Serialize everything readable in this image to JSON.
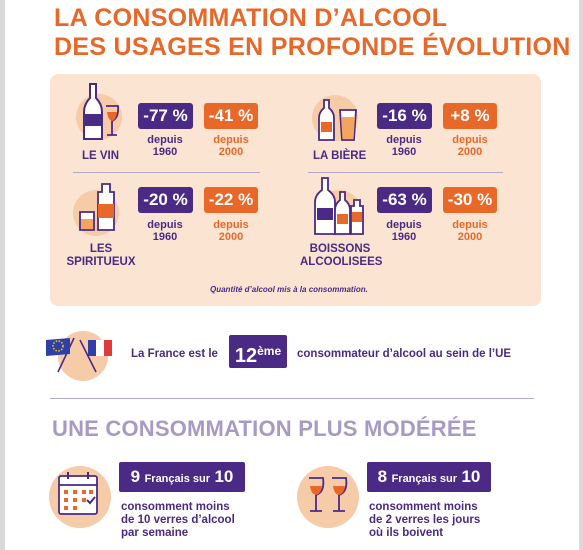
{
  "title": {
    "line1": "LA CONSOMMATION D’ALCOOL",
    "line2": "DES USAGES EN PROFONDE ÉVOLUTION"
  },
  "categories": [
    {
      "name": "LE VIN",
      "icon": "wine-bottle-glass-icon",
      "since_1960": "-77 %",
      "since_2000": "-41 %"
    },
    {
      "name": "LA BIÈRE",
      "icon": "beer-bottle-glass-icon",
      "since_1960": "-16 %",
      "since_2000": "+8 %"
    },
    {
      "name_line1": "LES",
      "name_line2": "SPIRITUEUX",
      "icon": "spirits-bottle-glass-icon",
      "since_1960": "-20 %",
      "since_2000": "-22 %"
    },
    {
      "name_line1": "BOISSONS",
      "name_line2": "ALCOOLISEES",
      "icon": "mixed-bottles-icon",
      "since_1960": "-63 %",
      "since_2000": "-30 %"
    }
  ],
  "labels": {
    "depuis": "depuis",
    "year_1960": "1960",
    "year_2000": "2000"
  },
  "footnote": "Quantité d’alcool mis à la consommation.",
  "ranking": {
    "icon": "eu-france-flags-icon",
    "before": "La France est le",
    "rank": "12",
    "rank_suffix": "ème",
    "after": "consommateur d’alcool au sein de l’UE"
  },
  "subtitle": "UNE CONSOMMATION PLUS MODÉRÉE",
  "stats": [
    {
      "icon": "calendar-icon",
      "number": "9",
      "mid": "Français sur",
      "total": "10",
      "line1": "consomment moins",
      "line2": "de 10 verres d’alcool",
      "line3": "par semaine"
    },
    {
      "icon": "wine-glasses-icon",
      "number": "8",
      "mid": "Français sur",
      "total": "10",
      "line1": "consomment moins",
      "line2": "de 2 verres les jours",
      "line3": "où ils boivent"
    }
  ],
  "colors": {
    "orange": "#e8682a",
    "purple": "#4a2a85",
    "peach": "#fbe5d2",
    "lavender": "#a89ac7"
  }
}
